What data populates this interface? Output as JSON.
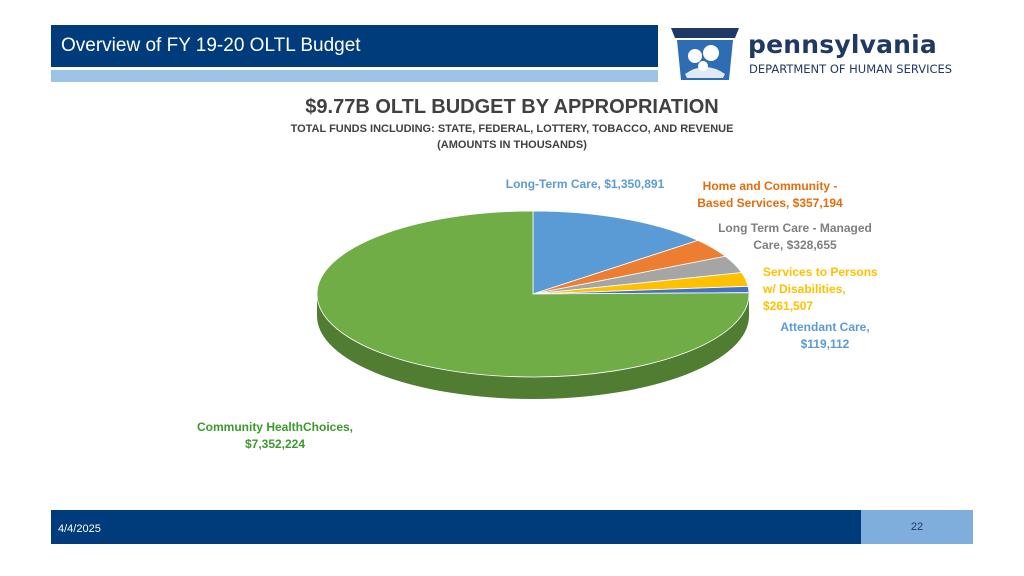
{
  "header": {
    "title": "Overview of FY 19-20 OLTL Budget",
    "logo_word": "pennsylvania",
    "logo_sub": "DEPARTMENT OF HUMAN SERVICES",
    "colors": {
      "bar": "#003B7B",
      "underline": "#9DC3E6",
      "logo": "#1F3864"
    }
  },
  "footer": {
    "date": "4/4/2025",
    "page": "22"
  },
  "chart_data": {
    "type": "pie",
    "title": "$9.77B OLTL BUDGET BY APPROPRIATION",
    "subtitle_1": "TOTAL FUNDS INCLUDING: STATE, FEDERAL, LOTTERY, TOBACCO, AND REVENUE",
    "subtitle_2": "(AMOUNTS IN THOUSANDS)",
    "style": "3d",
    "slices": [
      {
        "name": "Long-Term Care",
        "value": 1350891,
        "color": "#5B9BD5",
        "label_lines": [
          "Long-Term Care, $1,350,891"
        ],
        "label_color": "#5B9BD5"
      },
      {
        "name": "Home and Community - Based Services",
        "value": 357194,
        "color": "#ED7D31",
        "label_lines": [
          "Home and Community -",
          "Based Services, $357,194"
        ],
        "label_color": "#E46C0A"
      },
      {
        "name": "Long Term Care - Managed Care",
        "value": 328655,
        "color": "#A5A5A5",
        "label_lines": [
          "Long Term Care - Managed",
          "Care, $328,655"
        ],
        "label_color": "#7F7F7F"
      },
      {
        "name": "Services to Persons w/ Disabilities",
        "value": 261507,
        "color": "#FFC000",
        "label_lines": [
          "Services to Persons",
          "w/ Disabilities,",
          "$261,507"
        ],
        "label_color": "#FFC000"
      },
      {
        "name": "Attendant Care",
        "value": 119112,
        "color": "#4472C4",
        "label_lines": [
          "Attendant Care,",
          "$119,112"
        ],
        "label_color": "#5B9BD5"
      },
      {
        "name": "Community HealthChoices",
        "value": 7352224,
        "color": "#70AD47",
        "label_lines": [
          "Community HealthChoices,",
          "$7,352,224"
        ],
        "label_color": "#3A9A2A"
      }
    ]
  }
}
